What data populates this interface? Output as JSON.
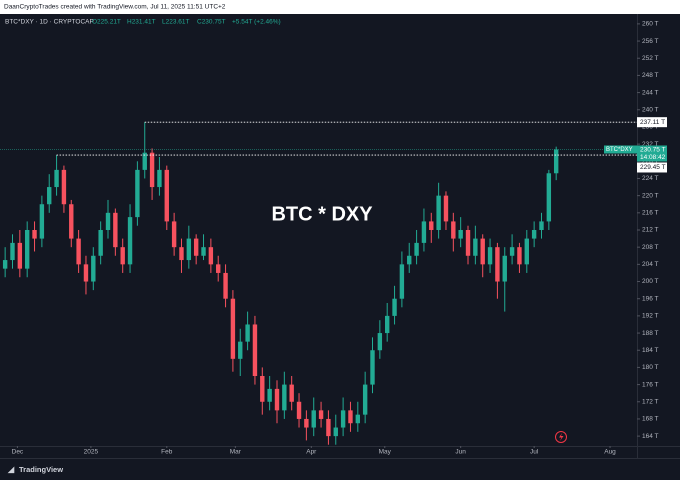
{
  "chart_data": {
    "type": "candlestick",
    "header": "DaanCryptoTrades created with TradingView.com, Jul 11, 2025 11:51 UTC+2",
    "legend": {
      "symbol": "BTC*DXY · 1D · CRYPTOCAP",
      "open": "O225.21T",
      "high": "H231.41T",
      "low": "L223.61T",
      "close": "C230.75T",
      "change": "+5.54T (+2.46%)"
    },
    "title": "BTC * DXY",
    "footer": "TradingView",
    "up_color": "#22ab94",
    "down_color": "#f7525f",
    "open": [
      203,
      205,
      209,
      203,
      212,
      210,
      218,
      222,
      226,
      218,
      210,
      204,
      200,
      206,
      212,
      216,
      208,
      204,
      215,
      226,
      230,
      222,
      226,
      214,
      208,
      205,
      210,
      206,
      208,
      204,
      202,
      196,
      182,
      186,
      190,
      178,
      172,
      175,
      170,
      176,
      172,
      168,
      166,
      170,
      168,
      164,
      166,
      170,
      167,
      169,
      176,
      184,
      188,
      192,
      196,
      204,
      206,
      209,
      214,
      212,
      220,
      214,
      210,
      212,
      206,
      210,
      204,
      208,
      200,
      206,
      208,
      204,
      210,
      212,
      214,
      225.21
    ],
    "high": [
      208,
      211,
      212,
      214,
      214,
      220,
      225,
      229.45,
      227,
      219,
      212,
      206,
      208,
      214,
      219,
      217,
      210,
      218,
      228,
      237.11,
      231,
      229,
      227,
      216,
      210,
      213,
      211,
      211,
      210,
      206,
      204,
      198,
      189,
      193,
      192,
      180,
      178,
      177,
      179,
      178,
      174,
      170,
      173,
      172,
      170,
      169,
      173,
      172,
      172,
      179,
      187,
      191,
      195,
      199,
      207,
      209,
      212,
      217,
      216,
      223,
      221,
      216,
      215,
      213,
      213,
      211,
      210,
      209,
      208,
      211,
      209,
      212,
      214,
      216,
      226,
      231.41
    ],
    "low": [
      201,
      203,
      201,
      201,
      207,
      208,
      216,
      220,
      216,
      208,
      202,
      197,
      198,
      204,
      210,
      206,
      202,
      202,
      213,
      224,
      219,
      220,
      212,
      206,
      202,
      203,
      204,
      205,
      202,
      200,
      194,
      179,
      178,
      184,
      176,
      169,
      170,
      167,
      168,
      170,
      166,
      163,
      164,
      166,
      162,
      162,
      164,
      165,
      165,
      167,
      174,
      182,
      186,
      190,
      194,
      202,
      204,
      207,
      209,
      210,
      212,
      207,
      208,
      204,
      204,
      201,
      202,
      196,
      193,
      204,
      202,
      202,
      208,
      210,
      212,
      223.61
    ],
    "close": [
      205,
      209,
      203,
      212,
      210,
      218,
      222,
      226,
      218,
      210,
      204,
      200,
      206,
      212,
      216,
      208,
      204,
      215,
      226,
      230,
      222,
      226,
      214,
      208,
      205,
      210,
      206,
      208,
      204,
      202,
      196,
      182,
      186,
      190,
      178,
      172,
      175,
      170,
      176,
      172,
      168,
      166,
      170,
      168,
      164,
      166,
      170,
      167,
      169,
      176,
      184,
      188,
      192,
      196,
      204,
      206,
      209,
      214,
      212,
      220,
      214,
      210,
      212,
      206,
      210,
      204,
      208,
      200,
      206,
      208,
      204,
      210,
      212,
      214,
      225.21,
      230.75
    ],
    "ylim": [
      161.7,
      262.3
    ],
    "yticks": [
      {
        "value": 164,
        "label": "164 T"
      },
      {
        "value": 168,
        "label": "168 T"
      },
      {
        "value": 172,
        "label": "172 T"
      },
      {
        "value": 176,
        "label": "176 T"
      },
      {
        "value": 180,
        "label": "180 T"
      },
      {
        "value": 184,
        "label": "184 T"
      },
      {
        "value": 188,
        "label": "188 T"
      },
      {
        "value": 192,
        "label": "192 T"
      },
      {
        "value": 196,
        "label": "196 T"
      },
      {
        "value": 200,
        "label": "200 T"
      },
      {
        "value": 204,
        "label": "204 T"
      },
      {
        "value": 208,
        "label": "208 T"
      },
      {
        "value": 212,
        "label": "212 T"
      },
      {
        "value": 216,
        "label": "216 T"
      },
      {
        "value": 220,
        "label": "220 T"
      },
      {
        "value": 224,
        "label": "224 T"
      },
      {
        "value": 228,
        "label": "228 T"
      },
      {
        "value": 232,
        "label": "232 T"
      },
      {
        "value": 236,
        "label": "236 T"
      },
      {
        "value": 240,
        "label": "240 T"
      },
      {
        "value": 244,
        "label": "244 T"
      },
      {
        "value": 248,
        "label": "248 T"
      },
      {
        "value": 252,
        "label": "252 T"
      },
      {
        "value": 256,
        "label": "256 T"
      },
      {
        "value": 260,
        "label": "260 T"
      }
    ],
    "xlim": [
      -0.7,
      86
    ],
    "xticks": [
      {
        "value": 1.67,
        "label": "Dec"
      },
      {
        "value": 11.67,
        "label": "2025"
      },
      {
        "value": 22,
        "label": "Feb"
      },
      {
        "value": 31.33,
        "label": "Mar"
      },
      {
        "value": 41.67,
        "label": "Apr"
      },
      {
        "value": 51.67,
        "label": "May"
      },
      {
        "value": 62,
        "label": "Jun"
      },
      {
        "value": 72,
        "label": "Jul"
      },
      {
        "value": 82.33,
        "label": "Aug"
      }
    ],
    "level_labels": [
      {
        "value": 237.11,
        "label": "237.11 T"
      },
      {
        "value": 229.45,
        "label": "229.45 T"
      }
    ],
    "current": {
      "name": "BTC*DXY",
      "value": 230.75,
      "label": "230.75 T",
      "countdown": "14:08:42"
    },
    "grid": false
  }
}
